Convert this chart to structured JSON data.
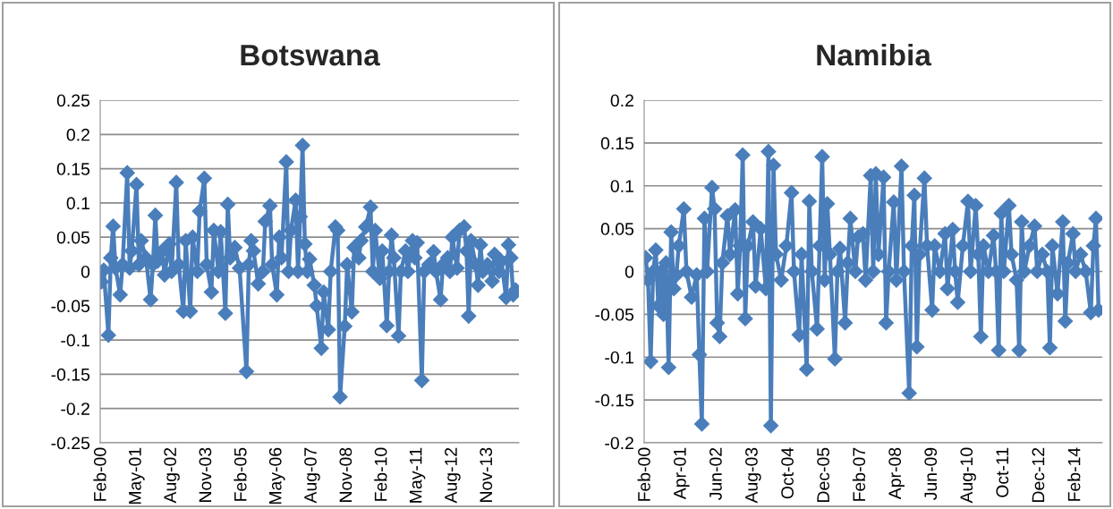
{
  "chart_data": [
    {
      "type": "line",
      "title": "Botswana",
      "color": "#4a7ebb",
      "marker": "diamond",
      "line_style": "solid",
      "grid": "y",
      "x": [
        "2000-02",
        "2000-03",
        "2000-05",
        "2000-06",
        "2000-07",
        "2000-08",
        "2000-10",
        "2000-11",
        "2001-01",
        "2001-02",
        "2001-03",
        "2001-05",
        "2001-06",
        "2001-07",
        "2001-09",
        "2001-11",
        "2001-12",
        "2002-01",
        "2002-02",
        "2002-04",
        "2002-05",
        "2002-07",
        "2002-08",
        "2002-10",
        "2002-11",
        "2003-01",
        "2003-02",
        "2003-04",
        "2003-05",
        "2003-07",
        "2003-08",
        "2003-10",
        "2003-11",
        "2004-01",
        "2004-02",
        "2004-04",
        "2004-05",
        "2004-07",
        "2004-08",
        "2004-09",
        "2004-11",
        "2005-01",
        "2005-04",
        "2005-05",
        "2005-06",
        "2005-07",
        "2005-09",
        "2005-11",
        "2005-12",
        "2006-02",
        "2006-03",
        "2006-05",
        "2006-06",
        "2006-07",
        "2006-09",
        "2006-10",
        "2006-11",
        "2007-01",
        "2007-02",
        "2007-03",
        "2007-04",
        "2007-05",
        "2007-06",
        "2007-07",
        "2007-09",
        "2007-10",
        "2007-12",
        "2008-01",
        "2008-03",
        "2008-04",
        "2008-06",
        "2008-07",
        "2008-08",
        "2008-10",
        "2008-11",
        "2009-01",
        "2009-02",
        "2009-04",
        "2009-05",
        "2009-07",
        "2009-09",
        "2009-10",
        "2009-11",
        "2010-01",
        "2010-02",
        "2010-04",
        "2010-05",
        "2010-06",
        "2010-07",
        "2010-09",
        "2010-10",
        "2010-12",
        "2011-01",
        "2011-03",
        "2011-04",
        "2011-05",
        "2011-07",
        "2011-08",
        "2011-10",
        "2011-12",
        "2012-01",
        "2012-03",
        "2012-04",
        "2012-06",
        "2012-07",
        "2012-08",
        "2012-10",
        "2012-11",
        "2013-01",
        "2013-02",
        "2013-03",
        "2013-04",
        "2013-06",
        "2013-07",
        "2013-08",
        "2013-09",
        "2013-11",
        "2014-01",
        "2014-02",
        "2014-04",
        "2014-05",
        "2014-07",
        "2014-08",
        "2014-09",
        "2014-10",
        "2014-11"
      ],
      "values": [
        -0.015,
        0.002,
        -0.093,
        0.02,
        0.066,
        0.005,
        -0.034,
        0.01,
        0.144,
        0.005,
        0.03,
        0.127,
        0.01,
        0.045,
        0.02,
        -0.041,
        0.01,
        0.082,
        0.015,
        0.03,
        -0.005,
        0.04,
        0.0,
        0.13,
        0.01,
        -0.058,
        0.045,
        -0.058,
        0.05,
        0.0,
        0.088,
        0.136,
        0.01,
        -0.03,
        0.06,
        0.0,
        0.058,
        -0.061,
        0.098,
        0.02,
        0.035,
        0.005,
        -0.146,
        0.01,
        0.045,
        0.03,
        -0.018,
        0.0,
        0.073,
        0.096,
        0.01,
        -0.034,
        0.05,
        0.02,
        0.16,
        0.0,
        0.06,
        0.104,
        0.0,
        0.08,
        0.184,
        0.04,
        0.0,
        0.018,
        -0.02,
        -0.05,
        -0.112,
        -0.03,
        -0.085,
        0.0,
        0.065,
        0.06,
        -0.183,
        -0.08,
        0.01,
        -0.059,
        0.035,
        0.02,
        0.045,
        0.065,
        0.094,
        0.0,
        0.06,
        -0.01,
        0.03,
        -0.079,
        0.0,
        0.053,
        0.02,
        -0.094,
        0.0,
        0.03,
        0.0,
        0.045,
        0.02,
        0.042,
        -0.159,
        0.0,
        0.01,
        0.029,
        0.0,
        -0.041,
        0.01,
        0.02,
        0.0,
        0.05,
        0.005,
        0.06,
        0.065,
        0.03,
        -0.065,
        0.045,
        0.01,
        -0.02,
        0.039,
        0.0,
        0.01,
        -0.014,
        0.025,
        0.0,
        0.015,
        -0.038,
        0.039,
        0.02,
        -0.034,
        -0.027
      ],
      "xlim": [
        "2000-01-15",
        "2014-12-15"
      ],
      "xticks": [
        {
          "value": "2000-02",
          "label": "Feb-00"
        },
        {
          "value": "2001-05",
          "label": "May-01"
        },
        {
          "value": "2002-08",
          "label": "Aug-02"
        },
        {
          "value": "2003-11",
          "label": "Nov-03"
        },
        {
          "value": "2005-02",
          "label": "Feb-05"
        },
        {
          "value": "2006-05",
          "label": "May-06"
        },
        {
          "value": "2007-08",
          "label": "Aug-07"
        },
        {
          "value": "2008-11",
          "label": "Nov-08"
        },
        {
          "value": "2010-02",
          "label": "Feb-10"
        },
        {
          "value": "2011-05",
          "label": "May-11"
        },
        {
          "value": "2012-08",
          "label": "Aug-12"
        },
        {
          "value": "2013-11",
          "label": "Nov-13"
        }
      ],
      "ylim": [
        -0.25,
        0.25
      ],
      "yticks": [
        -0.25,
        -0.2,
        -0.15,
        -0.1,
        -0.05,
        0,
        0.05,
        0.1,
        0.15,
        0.2,
        0.25
      ]
    },
    {
      "type": "line",
      "title": "Namibia",
      "color": "#4a7ebb",
      "marker": "diamond",
      "line_style": "solid",
      "grid": "y",
      "x": [
        "2000-02",
        "2000-03",
        "2000-04",
        "2000-05",
        "2000-06",
        "2000-07",
        "2000-08",
        "2000-09",
        "2000-10",
        "2000-11",
        "2000-12",
        "2001-01",
        "2001-02",
        "2001-03",
        "2001-05",
        "2001-06",
        "2001-08",
        "2001-10",
        "2001-11",
        "2001-12",
        "2002-01",
        "2002-02",
        "2002-04",
        "2002-05",
        "2002-06",
        "2002-07",
        "2002-08",
        "2002-10",
        "2002-11",
        "2003-01",
        "2003-02",
        "2003-03",
        "2003-04",
        "2003-05",
        "2003-06",
        "2003-08",
        "2003-09",
        "2003-11",
        "2004-01",
        "2004-02",
        "2004-03",
        "2004-04",
        "2004-05",
        "2004-07",
        "2004-09",
        "2004-11",
        "2004-12",
        "2005-02",
        "2005-03",
        "2005-05",
        "2005-06",
        "2005-07",
        "2005-09",
        "2005-10",
        "2005-11",
        "2005-12",
        "2006-01",
        "2006-02",
        "2006-04",
        "2006-05",
        "2006-06",
        "2006-08",
        "2006-09",
        "2006-10",
        "2006-12",
        "2007-01",
        "2007-03",
        "2007-04",
        "2007-06",
        "2007-07",
        "2007-08",
        "2007-09",
        "2007-11",
        "2007-12",
        "2008-01",
        "2008-03",
        "2008-04",
        "2008-06",
        "2008-07",
        "2008-09",
        "2008-10",
        "2008-11",
        "2008-12",
        "2009-01",
        "2009-03",
        "2009-04",
        "2009-06",
        "2009-07",
        "2009-09",
        "2009-11",
        "2009-12",
        "2010-02",
        "2010-03",
        "2010-04",
        "2010-06",
        "2010-08",
        "2010-09",
        "2010-11",
        "2010-12",
        "2011-01",
        "2011-02",
        "2011-04",
        "2011-06",
        "2011-07",
        "2011-08",
        "2011-09",
        "2011-10",
        "2011-12",
        "2012-01",
        "2012-03",
        "2012-04",
        "2012-05",
        "2012-06",
        "2012-08",
        "2012-10",
        "2012-11",
        "2013-01",
        "2013-03",
        "2013-04",
        "2013-05",
        "2013-07",
        "2013-09",
        "2013-10",
        "2013-11",
        "2014-01",
        "2014-02",
        "2014-04",
        "2014-06",
        "2014-08",
        "2014-09",
        "2014-10",
        "2014-11"
      ],
      "values": [
        0.016,
        -0.01,
        -0.105,
        0.0,
        0.025,
        -0.04,
        0.0,
        -0.05,
        0.01,
        -0.112,
        0.046,
        -0.02,
        -0.004,
        0.03,
        0.073,
        0.0,
        -0.03,
        -0.004,
        -0.097,
        -0.178,
        0.062,
        0.0,
        0.098,
        0.073,
        -0.06,
        -0.076,
        0.01,
        0.065,
        0.02,
        0.072,
        -0.026,
        0.03,
        0.136,
        -0.055,
        0.03,
        0.058,
        -0.017,
        0.05,
        -0.02,
        0.14,
        -0.18,
        0.124,
        0.02,
        -0.01,
        0.03,
        0.092,
        0.0,
        -0.074,
        0.02,
        -0.114,
        0.082,
        0.0,
        -0.067,
        0.03,
        0.134,
        -0.01,
        0.079,
        0.02,
        -0.102,
        0.0,
        0.027,
        -0.06,
        0.01,
        0.062,
        0.0,
        0.04,
        0.044,
        -0.01,
        0.112,
        0.0,
        0.114,
        0.02,
        0.11,
        -0.06,
        0.0,
        0.081,
        -0.01,
        0.123,
        0.0,
        -0.142,
        0.03,
        0.089,
        -0.088,
        0.02,
        0.109,
        0.03,
        -0.045,
        0.03,
        0.0,
        0.044,
        -0.02,
        0.049,
        0.0,
        -0.036,
        0.03,
        0.082,
        0.0,
        0.077,
        0.02,
        -0.076,
        0.03,
        0.0,
        0.042,
        0.0,
        -0.092,
        0.068,
        0.0,
        0.077,
        0.02,
        -0.01,
        -0.092,
        0.058,
        0.0,
        0.03,
        0.053,
        0.0,
        0.02,
        0.0,
        -0.089,
        0.03,
        -0.026,
        0.058,
        -0.058,
        0.01,
        0.044,
        0.0,
        0.02,
        0.0,
        -0.048,
        0.03,
        0.062,
        -0.045
      ],
      "xlim": [
        "2000-01-15",
        "2014-12-15"
      ],
      "xticks": [
        {
          "value": "2000-02",
          "label": "Feb-00"
        },
        {
          "value": "2001-04",
          "label": "Apr-01"
        },
        {
          "value": "2002-06",
          "label": "Jun-02"
        },
        {
          "value": "2003-08",
          "label": "Aug-03"
        },
        {
          "value": "2004-10",
          "label": "Oct-04"
        },
        {
          "value": "2005-12",
          "label": "Dec-05"
        },
        {
          "value": "2007-02",
          "label": "Feb-07"
        },
        {
          "value": "2008-04",
          "label": "Apr-08"
        },
        {
          "value": "2009-06",
          "label": "Jun-09"
        },
        {
          "value": "2010-08",
          "label": "Aug-10"
        },
        {
          "value": "2011-10",
          "label": "Oct-11"
        },
        {
          "value": "2012-12",
          "label": "Dec-12"
        },
        {
          "value": "2014-02",
          "label": "Feb-14"
        }
      ],
      "ylim": [
        -0.2,
        0.2
      ],
      "yticks": [
        -0.2,
        -0.15,
        -0.1,
        -0.05,
        0,
        0.05,
        0.1,
        0.15,
        0.2
      ]
    }
  ]
}
